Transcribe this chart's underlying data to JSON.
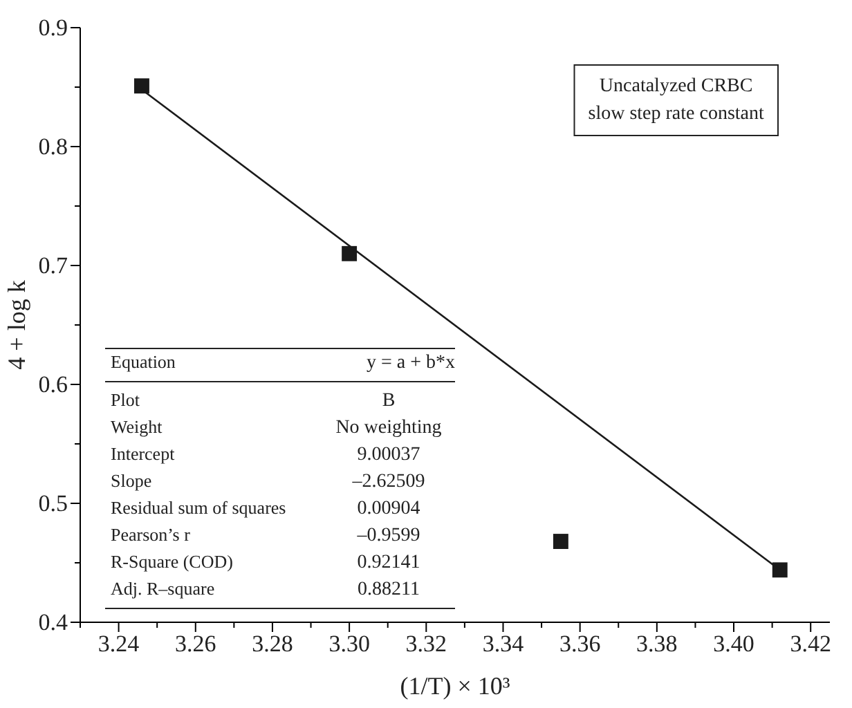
{
  "chart_data": {
    "type": "scatter",
    "xlabel": "(1/T) × 10³",
    "ylabel": "4 + log k",
    "xlim": [
      3.23,
      3.425
    ],
    "ylim": [
      0.4,
      0.9
    ],
    "xticks": [
      {
        "value": 3.23,
        "label": null
      },
      3.24,
      {
        "value": 3.25,
        "label": null
      },
      3.26,
      {
        "value": 3.27,
        "label": null
      },
      3.28,
      {
        "value": 3.29,
        "label": null
      },
      "3.30",
      {
        "value": 3.31,
        "label": null
      },
      3.32,
      {
        "value": 3.33,
        "label": null
      },
      3.34,
      {
        "value": 3.35,
        "label": null
      },
      3.36,
      {
        "value": 3.37,
        "label": null
      },
      3.38,
      {
        "value": 3.39,
        "label": null
      },
      "3.40",
      {
        "value": 3.41,
        "label": null
      },
      3.42
    ],
    "yticks": [
      0.4,
      {
        "value": 0.45,
        "label": null
      },
      0.5,
      {
        "value": 0.55,
        "label": null
      },
      0.6,
      {
        "value": 0.65,
        "label": null
      },
      0.7,
      {
        "value": 0.75,
        "label": null
      },
      0.8,
      {
        "value": 0.85,
        "label": null
      },
      0.9
    ],
    "series": [
      {
        "color": "#1a1a1a",
        "marker": "square",
        "x": [
          3.246,
          3.3,
          3.355,
          3.412
        ],
        "values": [
          0.851,
          0.71,
          0.468,
          0.444
        ]
      },
      {
        "type": "line",
        "color": "#1a1a1a",
        "marker": "none",
        "line_style": "solid",
        "x": [
          3.246,
          3.412
        ],
        "values": [
          0.848,
          0.444
        ]
      }
    ],
    "annotations": [
      "Uncatalyzed CRBC\nslow step rate constant",
      "Equation",
      "y = a + b*x",
      "Plot",
      "B",
      "Weight",
      "No weighting",
      "Intercept",
      "9.00037",
      "Slope",
      "–2.62509",
      "Residual sum of squares",
      "0.00904",
      "Pearson’s r",
      "–0.9599",
      "R-Square (COD)",
      "0.92141",
      "Adj. R–square",
      "0.88211"
    ],
    "grid": false
  }
}
